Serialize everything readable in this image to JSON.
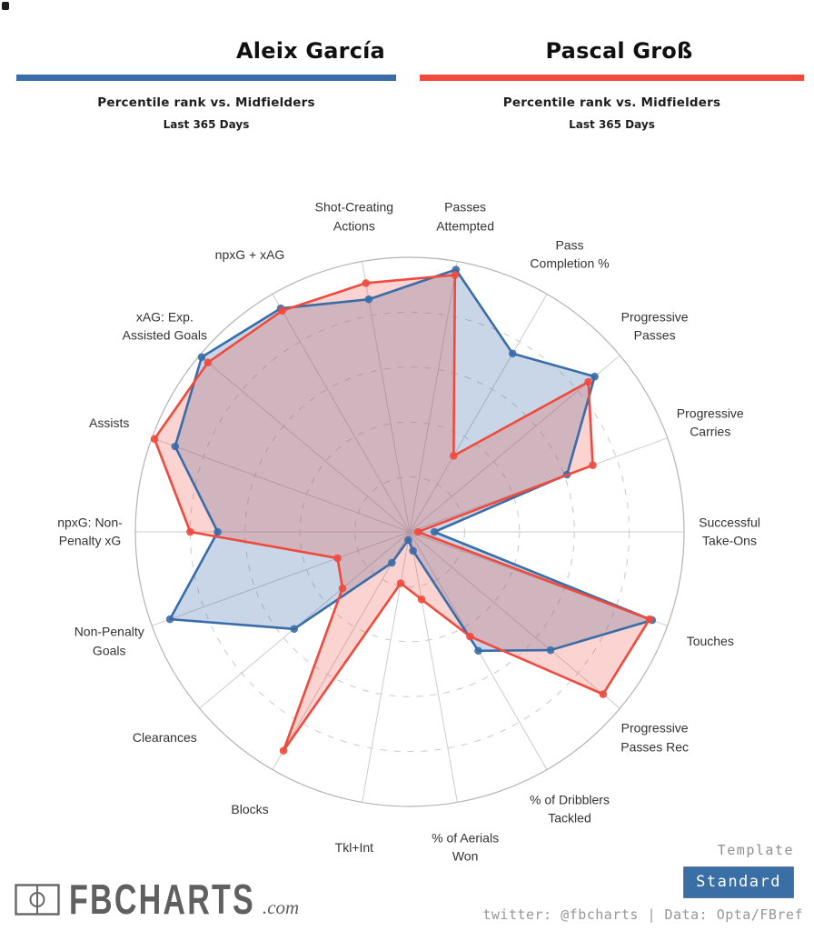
{
  "header": {
    "players": [
      {
        "name": "Aleix García",
        "accent_color": "#3a6ca8",
        "subtitle": "Percentile rank vs. Midfielders",
        "period": "Last 365 Days"
      },
      {
        "name": "Pascal Groß",
        "accent_color": "#f04a3e",
        "subtitle": "Percentile rank vs. Midfielders",
        "period": "Last 365 Days"
      }
    ]
  },
  "chart_data": {
    "type": "radar",
    "title": "Percentile rank vs. Midfielders",
    "subtitle": "Last 365 Days",
    "axis_range": [
      0,
      100
    ],
    "grid_rings_dashed": [
      20,
      40,
      60,
      80
    ],
    "outer_ring": 100,
    "start_angle_deg": 10,
    "angle_step_deg": 20,
    "grid": "on",
    "legend_position": "header",
    "categories": [
      {
        "name": "Passes Attempted",
        "lines": [
          "Passes",
          "Attempted"
        ]
      },
      {
        "name": "Pass Completion %",
        "lines": [
          "Pass",
          "Completion %"
        ]
      },
      {
        "name": "Progressive Passes",
        "lines": [
          "Progressive",
          "Passes"
        ]
      },
      {
        "name": "Progressive Carries",
        "lines": [
          "Progressive",
          "Carries"
        ]
      },
      {
        "name": "Successful Take-Ons",
        "lines": [
          "Successful",
          "Take-Ons"
        ]
      },
      {
        "name": "Touches",
        "lines": [
          "Touches"
        ]
      },
      {
        "name": "Progressive Passes Rec",
        "lines": [
          "Progressive",
          "Passes Rec"
        ]
      },
      {
        "name": "% of Dribblers Tackled",
        "lines": [
          "% of Dribblers",
          "Tackled"
        ]
      },
      {
        "name": "% of Aerials Won",
        "lines": [
          "% of Aerials",
          "Won"
        ]
      },
      {
        "name": "Tkl+Int",
        "lines": [
          "Tkl+Int"
        ]
      },
      {
        "name": "Blocks",
        "lines": [
          "Blocks"
        ]
      },
      {
        "name": "Clearances",
        "lines": [
          "Clearances"
        ]
      },
      {
        "name": "Non-Penalty Goals",
        "lines": [
          "Non-Penalty",
          "Goals"
        ]
      },
      {
        "name": "npxG: Non-Penalty xG",
        "lines": [
          "npxG: Non-",
          "Penalty xG"
        ]
      },
      {
        "name": "Assists",
        "lines": [
          "Assists"
        ]
      },
      {
        "name": "xAG: Exp. Assisted Goals",
        "lines": [
          "xAG: Exp.",
          "Assisted Goals"
        ]
      },
      {
        "name": "npxG + xAG",
        "lines": [
          "npxG + xAG"
        ]
      },
      {
        "name": "Shot-Creating Actions",
        "lines": [
          "Shot-Creating",
          "Actions"
        ]
      }
    ],
    "series": [
      {
        "name": "Aleix García",
        "color": "#3a6ca8",
        "fill_opacity": 0.28,
        "values": [
          97,
          75,
          88,
          61,
          9,
          94,
          67,
          50,
          7,
          3,
          13,
          55,
          93,
          70,
          91,
          99,
          94,
          86
        ]
      },
      {
        "name": "Pascal Groß",
        "color": "#f04a3e",
        "fill_opacity": 0.24,
        "values": [
          95,
          32,
          85,
          71,
          3,
          93,
          92,
          44,
          25,
          19,
          92,
          32,
          28,
          80,
          99,
          96,
          93,
          92
        ]
      }
    ]
  },
  "footer": {
    "logo_text": "FBCHARTS",
    "logo_suffix": ".com",
    "template_label": "Template",
    "template_value": "Standard",
    "button_color": "#3a6fa5",
    "credit": "twitter: @fbcharts | Data: Opta/FBref"
  }
}
